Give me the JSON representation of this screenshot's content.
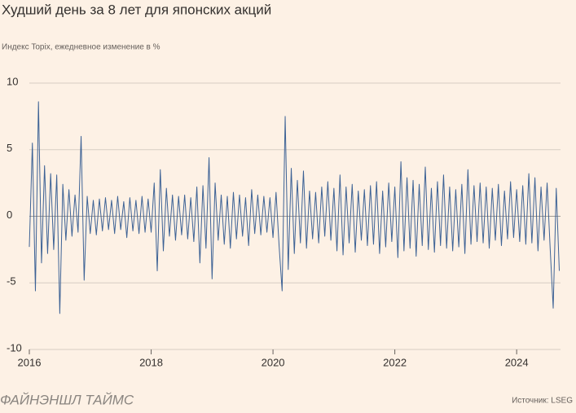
{
  "chart_data": {
    "type": "line",
    "title": "Худший день за 8 лет для японских акций",
    "subtitle": "Индекс Topix, ежедневное изменение в %",
    "source": "Источник: LSEG",
    "brand": "ФАЙНЭНШЛ ТАЙМС",
    "color": "#3d6295",
    "grid": true,
    "xlim": [
      2016,
      2024.7
    ],
    "xticks": [
      2016,
      2018,
      2020,
      2022,
      2024
    ],
    "ylim": [
      -10,
      10
    ],
    "yticks": [
      -10,
      -5,
      0,
      5,
      10
    ],
    "x": [
      2016.0,
      2016.05,
      2016.1,
      2016.15,
      2016.2,
      2016.25,
      2016.3,
      2016.35,
      2016.4,
      2016.45,
      2016.5,
      2016.55,
      2016.6,
      2016.65,
      2016.7,
      2016.75,
      2016.8,
      2016.85,
      2016.9,
      2016.95,
      2017.0,
      2017.05,
      2017.1,
      2017.15,
      2017.2,
      2017.25,
      2017.3,
      2017.35,
      2017.4,
      2017.45,
      2017.5,
      2017.55,
      2017.6,
      2017.65,
      2017.7,
      2017.75,
      2017.8,
      2017.85,
      2017.9,
      2017.95,
      2018.0,
      2018.05,
      2018.1,
      2018.15,
      2018.2,
      2018.25,
      2018.3,
      2018.35,
      2018.4,
      2018.45,
      2018.5,
      2018.55,
      2018.6,
      2018.65,
      2018.7,
      2018.75,
      2018.8,
      2018.85,
      2018.9,
      2018.95,
      2019.0,
      2019.05,
      2019.1,
      2019.15,
      2019.2,
      2019.25,
      2019.3,
      2019.35,
      2019.4,
      2019.45,
      2019.5,
      2019.55,
      2019.6,
      2019.65,
      2019.7,
      2019.75,
      2019.8,
      2019.85,
      2019.9,
      2019.95,
      2020.0,
      2020.05,
      2020.1,
      2020.15,
      2020.2,
      2020.25,
      2020.3,
      2020.35,
      2020.4,
      2020.45,
      2020.5,
      2020.55,
      2020.6,
      2020.65,
      2020.7,
      2020.75,
      2020.8,
      2020.85,
      2020.9,
      2020.95,
      2021.0,
      2021.05,
      2021.1,
      2021.15,
      2021.2,
      2021.25,
      2021.3,
      2021.35,
      2021.4,
      2021.45,
      2021.5,
      2021.55,
      2021.6,
      2021.65,
      2021.7,
      2021.75,
      2021.8,
      2021.85,
      2021.9,
      2021.95,
      2022.0,
      2022.05,
      2022.1,
      2022.15,
      2022.2,
      2022.25,
      2022.3,
      2022.35,
      2022.4,
      2022.45,
      2022.5,
      2022.55,
      2022.6,
      2022.65,
      2022.7,
      2022.75,
      2022.8,
      2022.85,
      2022.9,
      2022.95,
      2023.0,
      2023.05,
      2023.1,
      2023.15,
      2023.2,
      2023.25,
      2023.3,
      2023.35,
      2023.4,
      2023.45,
      2023.5,
      2023.55,
      2023.6,
      2023.65,
      2023.7,
      2023.75,
      2023.8,
      2023.85,
      2023.9,
      2023.95,
      2024.0,
      2024.05,
      2024.1,
      2024.15,
      2024.2,
      2024.25,
      2024.3,
      2024.35,
      2024.4,
      2024.45,
      2024.5,
      2024.55,
      2024.6,
      2024.65,
      2024.7
    ],
    "values": [
      -2.3,
      5.5,
      -5.6,
      8.6,
      -3.5,
      3.8,
      -2.8,
      3.2,
      -2.5,
      3.1,
      -7.3,
      2.4,
      -1.8,
      2.0,
      -1.5,
      1.6,
      -1.2,
      6.0,
      -4.8,
      1.5,
      -1.3,
      1.2,
      -1.4,
      1.3,
      -1.1,
      1.4,
      -1.0,
      1.2,
      -1.3,
      1.5,
      -1.0,
      1.1,
      -1.6,
      1.4,
      -1.1,
      1.2,
      -1.3,
      1.5,
      -1.2,
      1.3,
      -1.2,
      2.5,
      -4.1,
      3.5,
      -2.6,
      2.1,
      -1.5,
      1.6,
      -1.8,
      1.5,
      -1.4,
      1.6,
      -1.7,
      1.4,
      -1.9,
      2.2,
      -3.5,
      2.3,
      -2.4,
      4.4,
      -4.7,
      2.5,
      -1.8,
      1.6,
      -2.1,
      1.5,
      -2.4,
      1.8,
      -1.7,
      1.6,
      -1.5,
      1.4,
      -2.2,
      2.0,
      -1.3,
      1.6,
      -1.4,
      1.5,
      -1.2,
      1.4,
      -1.6,
      1.8,
      -2.2,
      -5.6,
      7.5,
      -4.0,
      3.6,
      -2.8,
      2.7,
      -2.0,
      3.4,
      -2.4,
      1.9,
      -1.7,
      1.8,
      -2.0,
      2.2,
      -1.5,
      2.6,
      -1.8,
      2.1,
      -2.6,
      3.1,
      -2.9,
      2.2,
      -2.0,
      2.4,
      -2.7,
      1.9,
      -1.8,
      2.0,
      -2.2,
      2.3,
      -2.1,
      2.6,
      -2.8,
      1.9,
      -2.3,
      2.5,
      -1.9,
      2.2,
      -3.1,
      4.1,
      -2.6,
      2.9,
      -2.4,
      2.7,
      -3.0,
      2.4,
      -2.2,
      3.7,
      -2.5,
      2.1,
      -2.7,
      2.6,
      -2.2,
      3.1,
      -2.4,
      2.2,
      -2.6,
      2.0,
      -2.3,
      2.4,
      -2.8,
      3.5,
      -2.1,
      2.3,
      -1.9,
      2.5,
      -2.0,
      2.2,
      -2.4,
      2.1,
      -1.8,
      2.4,
      -2.2,
      1.9,
      -1.7,
      2.6,
      -1.6,
      2.0,
      -1.9,
      2.3,
      -2.1,
      3.2,
      -2.0,
      2.9,
      -2.6,
      2.2,
      -1.8,
      2.5,
      -2.4,
      -6.9,
      2.1,
      -4.1
    ]
  }
}
